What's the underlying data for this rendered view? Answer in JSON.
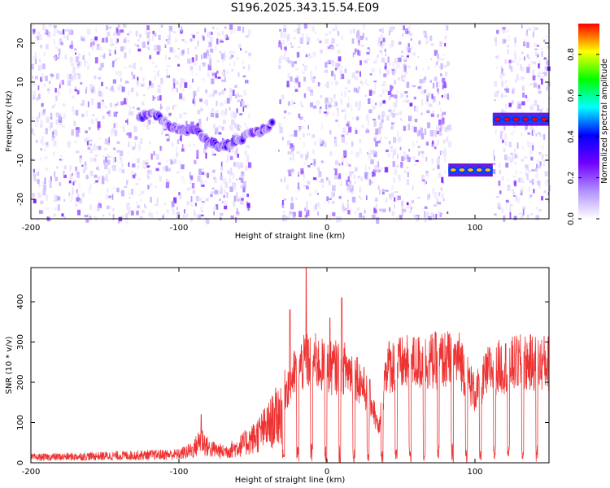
{
  "title": "S196.2025.343.15.54.E09",
  "chart_data": [
    {
      "type": "heatmap",
      "xlabel": "Height of straight line (km)",
      "ylabel": "Frequency (Hz)",
      "xlim": [
        -200,
        150
      ],
      "ylim": [
        -25,
        25
      ],
      "xticks": [
        -200,
        -100,
        0,
        100
      ],
      "yticks": [
        -20,
        -10,
        0,
        10,
        20
      ],
      "colorbar": {
        "label": "Normalized spectral amplitude",
        "range": [
          0,
          0.95
        ],
        "ticks": [
          "0.0",
          "0.2",
          "0.4",
          "0.6",
          "0.8"
        ],
        "colors": [
          "#ffffff",
          "#b090ff",
          "#7000ff",
          "#0000ff",
          "#00ffff",
          "#00ff00",
          "#ffff00",
          "#ff0000"
        ]
      },
      "blank_regions_x": [
        [
          -53,
          -33
        ],
        [
          82,
          112
        ]
      ],
      "trace": {
        "x": [
          -127,
          -120,
          -113,
          -106,
          -100,
          -95,
          -90,
          -84,
          -78,
          -72,
          -66,
          -60,
          -54,
          -48,
          -42,
          -36
        ],
        "y": [
          1,
          2,
          1,
          -1,
          -2,
          -2.5,
          -2,
          -4,
          -5.5,
          -6.5,
          -6,
          -5,
          -3.5,
          -3,
          -2,
          -0.5
        ],
        "max_amplitude": 0.45
      },
      "tone_segments": [
        {
          "x": [
            82,
            112
          ],
          "y": -12.5,
          "max_amplitude": 0.85
        },
        {
          "x": [
            112,
            150
          ],
          "y": 0.5,
          "max_amplitude": 0.95
        }
      ]
    },
    {
      "type": "line",
      "xlabel": "Height of straight line (km)",
      "ylabel": "SNR (10 * v/v)",
      "xlim": [
        -200,
        150
      ],
      "ylim": [
        0,
        485
      ],
      "xticks": [
        -200,
        -100,
        0,
        100
      ],
      "yticks": [
        0,
        100,
        200,
        300,
        400
      ],
      "color": "#ee3333",
      "series": [
        {
          "envelope_x": [
            -200,
            -150,
            -100,
            -90,
            -85,
            -80,
            -70,
            -60,
            -50,
            -40,
            -30,
            -20,
            -15,
            -10,
            0,
            10,
            20,
            30,
            35,
            40,
            60,
            80,
            90,
            100,
            110,
            120,
            130,
            140,
            150
          ],
          "envelope_y": [
            22,
            28,
            35,
            55,
            100,
            60,
            45,
            65,
            100,
            150,
            220,
            300,
            320,
            330,
            300,
            310,
            280,
            200,
            100,
            310,
            320,
            330,
            330,
            220,
            300,
            310,
            320,
            320,
            320
          ],
          "peaks": [
            [
              -85,
              120
            ],
            [
              -25,
              380
            ],
            [
              -14,
              485
            ],
            [
              10,
              410
            ],
            [
              2,
              360
            ]
          ]
        }
      ]
    }
  ]
}
